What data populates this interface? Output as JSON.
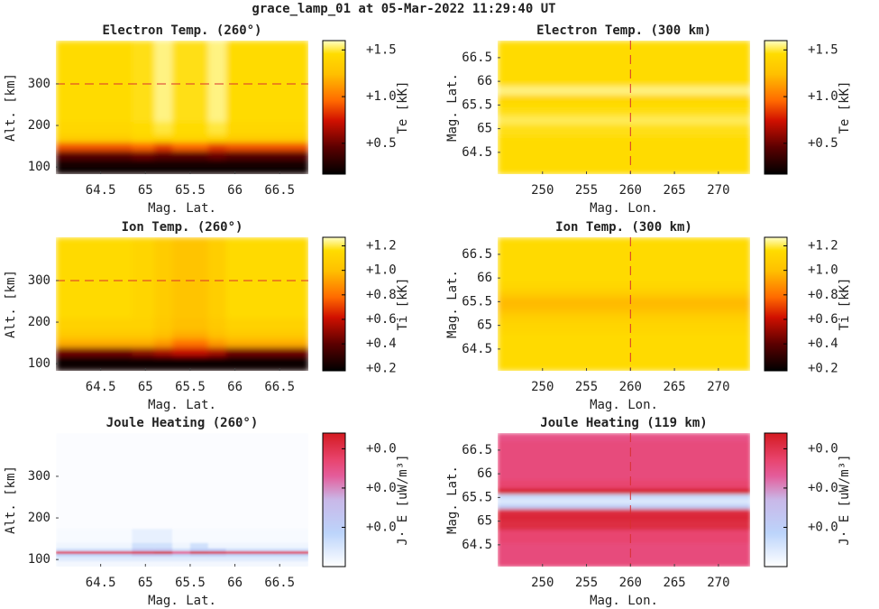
{
  "title": "grace_lamp_01 at 05-Mar-2022 11:29:40 UT",
  "chart_data": [
    {
      "type": "heatmap",
      "title": "Electron Temp. (260°)",
      "xlabel": "Mag. Lat.",
      "ylabel": "Alt. [km]",
      "clabel": "Te [kK]",
      "colormap": "hot",
      "xlim": [
        64.0,
        66.82
      ],
      "ylim": [
        83,
        404
      ],
      "xticks": [
        64.5,
        65,
        65.5,
        66,
        66.5
      ],
      "yticks": [
        100,
        200,
        300
      ],
      "clim": [
        0.17,
        1.6
      ],
      "cticks": [
        {
          "value": 0.5,
          "label": "+0.5"
        },
        {
          "value": 1.0,
          "label": "+1.0"
        },
        {
          "value": 1.5,
          "label": "+1.5"
        }
      ],
      "hline": 300,
      "x": [
        64.1,
        64.4,
        64.7,
        65.0,
        65.2,
        65.4,
        65.6,
        65.8,
        66.0,
        66.3,
        66.6
      ],
      "y": [
        90,
        110,
        130,
        150,
        170,
        190,
        230,
        270,
        310,
        350,
        390
      ],
      "z": [
        [
          0.2,
          0.2,
          0.2,
          0.2,
          0.2,
          0.2,
          0.2,
          0.2,
          0.2,
          0.2,
          0.2
        ],
        [
          0.25,
          0.25,
          0.25,
          0.25,
          0.25,
          0.25,
          0.25,
          0.25,
          0.25,
          0.25,
          0.25
        ],
        [
          0.45,
          0.45,
          0.45,
          0.5,
          0.45,
          0.45,
          0.45,
          0.5,
          0.45,
          0.45,
          0.45
        ],
        [
          0.9,
          0.9,
          0.9,
          0.95,
          0.85,
          0.95,
          0.95,
          0.85,
          0.9,
          0.9,
          0.9
        ],
        [
          1.35,
          1.35,
          1.35,
          1.4,
          1.4,
          1.4,
          1.4,
          1.4,
          1.35,
          1.35,
          1.35
        ],
        [
          1.42,
          1.42,
          1.42,
          1.45,
          1.5,
          1.45,
          1.45,
          1.5,
          1.42,
          1.42,
          1.42
        ],
        [
          1.45,
          1.45,
          1.45,
          1.47,
          1.55,
          1.47,
          1.47,
          1.55,
          1.45,
          1.45,
          1.45
        ],
        [
          1.45,
          1.45,
          1.45,
          1.47,
          1.55,
          1.47,
          1.47,
          1.55,
          1.45,
          1.45,
          1.45
        ],
        [
          1.45,
          1.45,
          1.45,
          1.47,
          1.55,
          1.47,
          1.47,
          1.55,
          1.45,
          1.45,
          1.45
        ],
        [
          1.45,
          1.45,
          1.45,
          1.47,
          1.55,
          1.47,
          1.47,
          1.55,
          1.45,
          1.45,
          1.45
        ],
        [
          1.45,
          1.45,
          1.45,
          1.47,
          1.55,
          1.47,
          1.47,
          1.55,
          1.45,
          1.45,
          1.45
        ]
      ]
    },
    {
      "type": "heatmap",
      "title": "Electron Temp. (300 km)",
      "xlabel": "Mag. Lon.",
      "ylabel": "Mag. Lat.",
      "clabel": "Te [kK]",
      "colormap": "hot",
      "xlim": [
        244.9,
        273.6
      ],
      "ylim": [
        64.04,
        66.86
      ],
      "xticks": [
        250,
        255,
        260,
        265,
        270
      ],
      "yticks": [
        64.5,
        65,
        65.5,
        66,
        66.5
      ],
      "clim": [
        0.17,
        1.6
      ],
      "cticks": [
        {
          "value": 0.5,
          "label": "+0.5"
        },
        {
          "value": 1.0,
          "label": "+1.0"
        },
        {
          "value": 1.5,
          "label": "+1.5"
        }
      ],
      "vline": 260,
      "x": [
        247,
        253,
        259,
        265,
        271
      ],
      "y": [
        64.1,
        64.4,
        64.7,
        65.0,
        65.2,
        65.35,
        65.5,
        65.65,
        65.8,
        66.0,
        66.3,
        66.6,
        66.8
      ],
      "z": [
        [
          1.45,
          1.45,
          1.45,
          1.45,
          1.45
        ],
        [
          1.45,
          1.45,
          1.45,
          1.45,
          1.45
        ],
        [
          1.45,
          1.45,
          1.45,
          1.45,
          1.45
        ],
        [
          1.47,
          1.47,
          1.47,
          1.47,
          1.47
        ],
        [
          1.52,
          1.52,
          1.52,
          1.52,
          1.52
        ],
        [
          1.47,
          1.47,
          1.47,
          1.47,
          1.47
        ],
        [
          1.45,
          1.45,
          1.45,
          1.45,
          1.45
        ],
        [
          1.4,
          1.4,
          1.4,
          1.4,
          1.4
        ],
        [
          1.55,
          1.55,
          1.55,
          1.55,
          1.55
        ],
        [
          1.45,
          1.45,
          1.45,
          1.45,
          1.45
        ],
        [
          1.45,
          1.45,
          1.45,
          1.45,
          1.45
        ],
        [
          1.45,
          1.45,
          1.45,
          1.45,
          1.45
        ],
        [
          1.45,
          1.45,
          1.45,
          1.45,
          1.45
        ]
      ]
    },
    {
      "type": "heatmap",
      "title": "Ion Temp. (260°)",
      "xlabel": "Mag. Lat.",
      "ylabel": "Alt. [km]",
      "clabel": "Ti [kK]",
      "colormap": "hot",
      "xlim": [
        64.0,
        66.82
      ],
      "ylim": [
        83,
        404
      ],
      "xticks": [
        64.5,
        65,
        65.5,
        66,
        66.5
      ],
      "yticks": [
        100,
        200,
        300
      ],
      "clim": [
        0.18,
        1.27
      ],
      "cticks": [
        {
          "value": 0.2,
          "label": "+0.2"
        },
        {
          "value": 0.4,
          "label": "+0.4"
        },
        {
          "value": 0.6,
          "label": "+0.6"
        },
        {
          "value": 0.8,
          "label": "+0.8"
        },
        {
          "value": 1.0,
          "label": "+1.0"
        },
        {
          "value": 1.2,
          "label": "+1.2"
        }
      ],
      "hline": 300,
      "x": [
        64.1,
        64.4,
        64.7,
        65.0,
        65.2,
        65.4,
        65.6,
        65.8,
        66.0,
        66.3,
        66.6
      ],
      "y": [
        90,
        110,
        130,
        150,
        170,
        190,
        230,
        270,
        310,
        350,
        390
      ],
      "z": [
        [
          0.2,
          0.2,
          0.2,
          0.2,
          0.2,
          0.2,
          0.2,
          0.2,
          0.2,
          0.2,
          0.2
        ],
        [
          0.22,
          0.22,
          0.22,
          0.22,
          0.22,
          0.22,
          0.22,
          0.22,
          0.22,
          0.22,
          0.22
        ],
        [
          0.45,
          0.45,
          0.45,
          0.5,
          0.55,
          0.6,
          0.6,
          0.55,
          0.45,
          0.45,
          0.45
        ],
        [
          0.95,
          0.95,
          0.95,
          0.95,
          0.9,
          0.8,
          0.8,
          0.9,
          0.95,
          0.95,
          0.95
        ],
        [
          1.05,
          1.05,
          1.05,
          1.05,
          1.0,
          0.95,
          0.95,
          1.0,
          1.05,
          1.05,
          1.05
        ],
        [
          1.1,
          1.1,
          1.1,
          1.1,
          1.05,
          1.0,
          1.0,
          1.05,
          1.1,
          1.1,
          1.1
        ],
        [
          1.15,
          1.15,
          1.15,
          1.12,
          1.07,
          1.02,
          1.02,
          1.08,
          1.15,
          1.15,
          1.15
        ],
        [
          1.15,
          1.15,
          1.15,
          1.12,
          1.07,
          1.02,
          1.02,
          1.08,
          1.15,
          1.15,
          1.15
        ],
        [
          1.15,
          1.15,
          1.15,
          1.12,
          1.07,
          1.02,
          1.02,
          1.08,
          1.15,
          1.15,
          1.15
        ],
        [
          1.15,
          1.15,
          1.15,
          1.12,
          1.07,
          1.02,
          1.02,
          1.08,
          1.15,
          1.15,
          1.15
        ],
        [
          1.15,
          1.15,
          1.15,
          1.12,
          1.07,
          1.02,
          1.02,
          1.08,
          1.15,
          1.15,
          1.15
        ]
      ]
    },
    {
      "type": "heatmap",
      "title": "Ion Temp. (300 km)",
      "xlabel": "Mag. Lon.",
      "ylabel": "Mag. Lat.",
      "clabel": "Ti [kK]",
      "colormap": "hot",
      "xlim": [
        244.9,
        273.6
      ],
      "ylim": [
        64.04,
        66.86
      ],
      "xticks": [
        250,
        255,
        260,
        265,
        270
      ],
      "yticks": [
        64.5,
        65,
        65.5,
        66,
        66.5
      ],
      "clim": [
        0.18,
        1.27
      ],
      "cticks": [
        {
          "value": 0.2,
          "label": "+0.2"
        },
        {
          "value": 0.4,
          "label": "+0.4"
        },
        {
          "value": 0.6,
          "label": "+0.6"
        },
        {
          "value": 0.8,
          "label": "+0.8"
        },
        {
          "value": 1.0,
          "label": "+1.0"
        },
        {
          "value": 1.2,
          "label": "+1.2"
        }
      ],
      "vline": 260,
      "x": [
        247,
        253,
        259,
        265,
        271
      ],
      "y": [
        64.1,
        64.4,
        64.7,
        65.0,
        65.2,
        65.35,
        65.5,
        65.65,
        65.8,
        66.0,
        66.3,
        66.6,
        66.8
      ],
      "z": [
        [
          1.15,
          1.15,
          1.15,
          1.15,
          1.15
        ],
        [
          1.15,
          1.15,
          1.15,
          1.15,
          1.15
        ],
        [
          1.15,
          1.15,
          1.15,
          1.15,
          1.15
        ],
        [
          1.12,
          1.12,
          1.12,
          1.12,
          1.12
        ],
        [
          1.08,
          1.08,
          1.08,
          1.08,
          1.08
        ],
        [
          1.0,
          1.0,
          1.0,
          1.0,
          1.0
        ],
        [
          0.98,
          0.98,
          0.98,
          0.98,
          0.98
        ],
        [
          1.05,
          1.05,
          1.05,
          1.05,
          1.05
        ],
        [
          1.12,
          1.12,
          1.12,
          1.12,
          1.12
        ],
        [
          1.15,
          1.15,
          1.15,
          1.15,
          1.15
        ],
        [
          1.15,
          1.15,
          1.15,
          1.15,
          1.15
        ],
        [
          1.15,
          1.15,
          1.15,
          1.15,
          1.15
        ],
        [
          1.15,
          1.15,
          1.15,
          1.15,
          1.15
        ]
      ]
    },
    {
      "type": "heatmap",
      "title": "Joule Heating (260°)",
      "xlabel": "Mag. Lat.",
      "ylabel": "Alt. [km]",
      "clabel": "J· E [uW/m³]",
      "colormap": "joule",
      "xlim": [
        64.0,
        66.82
      ],
      "ylim": [
        83,
        404
      ],
      "xticks": [
        64.5,
        65,
        65.5,
        66,
        66.5
      ],
      "yticks": [
        100,
        200,
        300
      ],
      "clim": [
        0,
        0.034
      ],
      "cticks": [
        {
          "value": 0.01,
          "label": "+0.0"
        },
        {
          "value": 0.02,
          "label": "+0.0"
        },
        {
          "value": 0.03,
          "label": "+0.0"
        }
      ],
      "x": [
        64.1,
        64.4,
        64.7,
        65.0,
        65.2,
        65.4,
        65.6,
        65.8,
        66.0,
        66.3,
        66.6
      ],
      "y": [
        90,
        105,
        112,
        118,
        124,
        132,
        150,
        200,
        260,
        320,
        390
      ],
      "z": [
        [
          0.0015,
          0.0015,
          0.0015,
          0.0015,
          0.0015,
          0.0015,
          0.0015,
          0.0015,
          0.0015,
          0.0015,
          0.0015
        ],
        [
          0.004,
          0.004,
          0.004,
          0.004,
          0.004,
          0.004,
          0.004,
          0.004,
          0.004,
          0.004,
          0.004
        ],
        [
          0.008,
          0.008,
          0.008,
          0.012,
          0.012,
          0.008,
          0.01,
          0.01,
          0.008,
          0.008,
          0.008
        ],
        [
          0.03,
          0.03,
          0.03,
          0.032,
          0.034,
          0.025,
          0.033,
          0.032,
          0.03,
          0.03,
          0.03
        ],
        [
          0.006,
          0.006,
          0.006,
          0.012,
          0.012,
          0.006,
          0.01,
          0.01,
          0.006,
          0.006,
          0.006
        ],
        [
          0.002,
          0.002,
          0.002,
          0.006,
          0.006,
          0.002,
          0.006,
          0.002,
          0.002,
          0.002,
          0.002
        ],
        [
          0.001,
          0.001,
          0.001,
          0.003,
          0.003,
          0.001,
          0.001,
          0.001,
          0.001,
          0.001,
          0.001
        ],
        [
          0.0005,
          0.0005,
          0.0005,
          0.0005,
          0.0005,
          0.0005,
          0.0005,
          0.0005,
          0.0005,
          0.0005,
          0.0005
        ],
        [
          0.0005,
          0.0005,
          0.0005,
          0.0005,
          0.0005,
          0.0005,
          0.0005,
          0.0005,
          0.0005,
          0.0005,
          0.0005
        ],
        [
          0.0005,
          0.0005,
          0.0005,
          0.0005,
          0.0005,
          0.0005,
          0.0005,
          0.0005,
          0.0005,
          0.0005,
          0.0005
        ],
        [
          0.0005,
          0.0005,
          0.0005,
          0.0005,
          0.0005,
          0.0005,
          0.0005,
          0.0005,
          0.0005,
          0.0005,
          0.0005
        ]
      ]
    },
    {
      "type": "heatmap",
      "title": "Joule Heating (119 km)",
      "xlabel": "Mag. Lon.",
      "ylabel": "Mag. Lat.",
      "clabel": "J· E [uW/m³]",
      "colormap": "joule",
      "xlim": [
        244.9,
        273.6
      ],
      "ylim": [
        64.04,
        66.86
      ],
      "xticks": [
        250,
        255,
        260,
        265,
        270
      ],
      "yticks": [
        64.5,
        65,
        65.5,
        66,
        66.5
      ],
      "clim": [
        0,
        0.034
      ],
      "cticks": [
        {
          "value": 0.01,
          "label": "+0.0"
        },
        {
          "value": 0.02,
          "label": "+0.0"
        },
        {
          "value": 0.03,
          "label": "+0.0"
        }
      ],
      "vline": 260,
      "x": [
        247,
        253,
        259,
        265,
        271
      ],
      "y": [
        64.1,
        64.4,
        64.7,
        64.95,
        65.1,
        65.22,
        65.32,
        65.42,
        65.52,
        65.64,
        65.75,
        66.0,
        66.3,
        66.6,
        66.8
      ],
      "z": [
        [
          0.026,
          0.026,
          0.026,
          0.026,
          0.026
        ],
        [
          0.026,
          0.026,
          0.026,
          0.026,
          0.026
        ],
        [
          0.027,
          0.027,
          0.027,
          0.027,
          0.027
        ],
        [
          0.031,
          0.031,
          0.031,
          0.031,
          0.031
        ],
        [
          0.032,
          0.032,
          0.032,
          0.032,
          0.032
        ],
        [
          0.031,
          0.031,
          0.031,
          0.031,
          0.031
        ],
        [
          0.01,
          0.01,
          0.01,
          0.01,
          0.01
        ],
        [
          0.004,
          0.004,
          0.004,
          0.004,
          0.004
        ],
        [
          0.007,
          0.007,
          0.007,
          0.007,
          0.007
        ],
        [
          0.034,
          0.034,
          0.034,
          0.034,
          0.034
        ],
        [
          0.027,
          0.027,
          0.027,
          0.027,
          0.027
        ],
        [
          0.026,
          0.026,
          0.026,
          0.026,
          0.026
        ],
        [
          0.026,
          0.026,
          0.026,
          0.026,
          0.026
        ],
        [
          0.026,
          0.026,
          0.026,
          0.026,
          0.026
        ],
        [
          0.025,
          0.025,
          0.025,
          0.025,
          0.025
        ]
      ]
    }
  ]
}
